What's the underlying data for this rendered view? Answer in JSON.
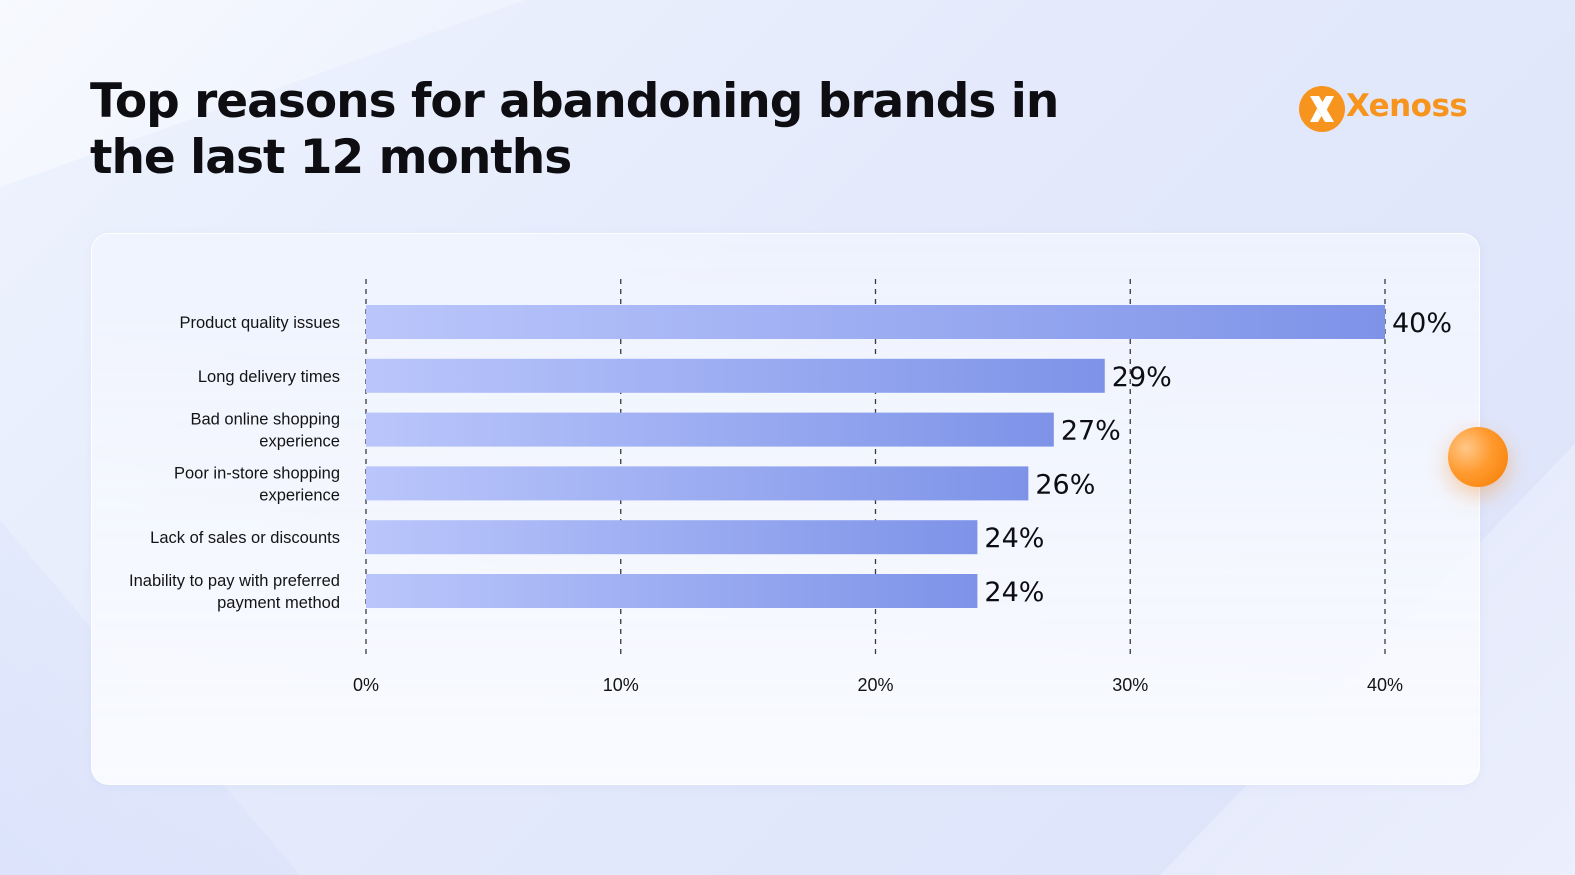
{
  "title": "Top reasons for abandoning brands in the last 12 months",
  "logo": {
    "text": "Xenoss",
    "icon": "xenoss-logo-icon",
    "color": "#f7941d"
  },
  "colors": {
    "bar_start": "#bac6fb",
    "bar_end": "#7e93e8",
    "accent_orb": "#ff9a2e"
  },
  "chart_data": {
    "type": "bar",
    "orientation": "horizontal",
    "title": "Top reasons for abandoning brands in the last 12 months",
    "categories": [
      [
        "Product quality issues"
      ],
      [
        "Long delivery times"
      ],
      [
        "Bad online shopping",
        "experience"
      ],
      [
        "Poor in-store shopping",
        "experience"
      ],
      [
        "Lack of sales or discounts"
      ],
      [
        "Inability to pay with preferred",
        "payment method"
      ]
    ],
    "values": [
      40,
      29,
      27,
      26,
      24,
      24
    ],
    "value_labels": [
      "40%",
      "29%",
      "27%",
      "26%",
      "24%",
      "24%"
    ],
    "xlim": [
      0,
      40
    ],
    "x_ticks": [
      0,
      10,
      20,
      30,
      40
    ],
    "x_tick_labels": [
      "0%",
      "10%",
      "20%",
      "30%",
      "40%"
    ],
    "grid": "vertical dashed",
    "legend": "none"
  }
}
